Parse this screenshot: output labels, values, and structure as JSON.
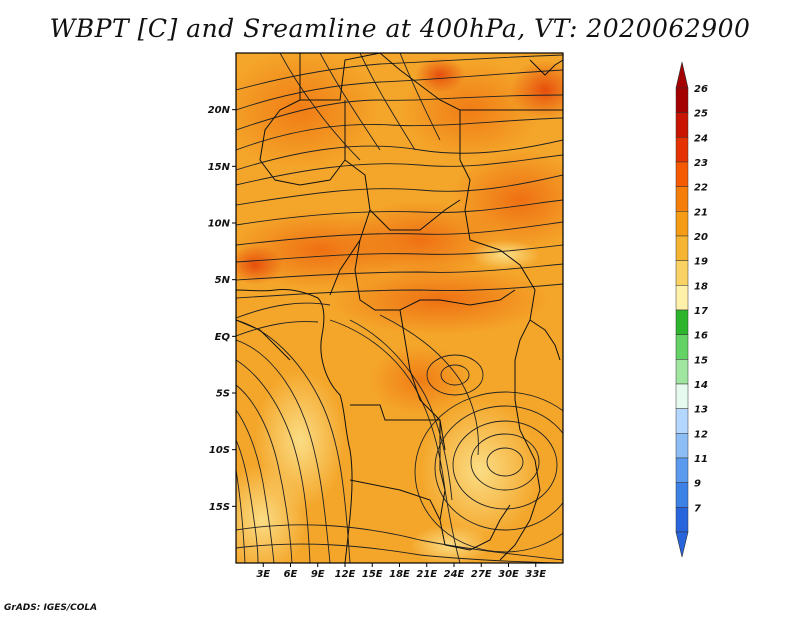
{
  "title": "WBPT [C] and Sreamline at 400hPa, VT: 2020062900",
  "footer": "GrADS: IGES/COLA",
  "map": {
    "lon_range": [
      0,
      36
    ],
    "lat_range": [
      -20,
      25
    ],
    "lat_ticks": [
      {
        "value": 20,
        "label": "20N"
      },
      {
        "value": 15,
        "label": "15N"
      },
      {
        "value": 10,
        "label": "10N"
      },
      {
        "value": 5,
        "label": "5N"
      },
      {
        "value": 0,
        "label": "EQ"
      },
      {
        "value": -5,
        "label": "5S"
      },
      {
        "value": -10,
        "label": "10S"
      },
      {
        "value": -15,
        "label": "15S"
      }
    ],
    "lon_ticks": [
      {
        "value": 3,
        "label": "3E"
      },
      {
        "value": 6,
        "label": "6E"
      },
      {
        "value": 9,
        "label": "9E"
      },
      {
        "value": 12,
        "label": "12E"
      },
      {
        "value": 15,
        "label": "15E"
      },
      {
        "value": 18,
        "label": "18E"
      },
      {
        "value": 21,
        "label": "21E"
      },
      {
        "value": 24,
        "label": "24E"
      },
      {
        "value": 27,
        "label": "27E"
      },
      {
        "value": 30,
        "label": "30E"
      },
      {
        "value": 33,
        "label": "33E"
      }
    ]
  },
  "colorbar": {
    "labels": [
      "26",
      "25",
      "24",
      "23",
      "22",
      "21",
      "20",
      "19",
      "18",
      "17",
      "16",
      "15",
      "14",
      "13",
      "12",
      "11",
      "9",
      "7"
    ],
    "colors": [
      "#a50000",
      "#c81400",
      "#e63200",
      "#f55a00",
      "#f57d0a",
      "#f59b14",
      "#f5b432",
      "#fad264",
      "#fff0aa",
      "#2db42d",
      "#64d264",
      "#a0e6a0",
      "#e6faf0",
      "#b4d7ff",
      "#8cbef5",
      "#5a9bf0",
      "#3c82e6",
      "#2864dc"
    ]
  }
}
